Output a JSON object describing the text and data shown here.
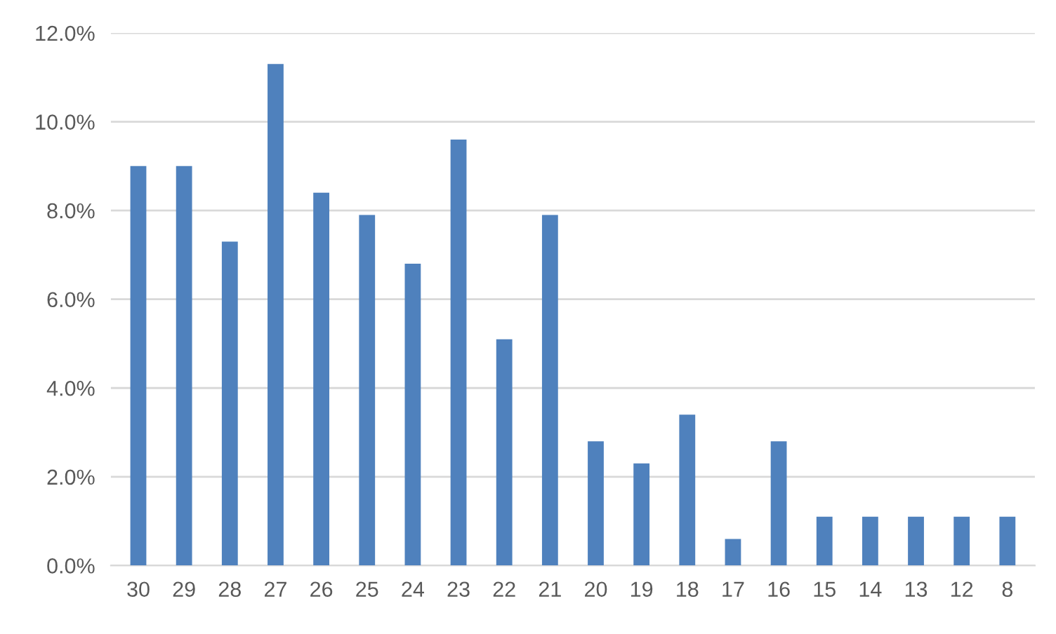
{
  "chart_data": {
    "type": "bar",
    "categories": [
      "30",
      "29",
      "28",
      "27",
      "26",
      "25",
      "24",
      "23",
      "22",
      "21",
      "20",
      "19",
      "18",
      "17",
      "16",
      "15",
      "14",
      "13",
      "12",
      "8"
    ],
    "values": [
      9.0,
      9.0,
      7.3,
      11.3,
      8.4,
      7.9,
      6.8,
      9.6,
      5.1,
      7.9,
      2.8,
      2.3,
      3.4,
      0.6,
      2.8,
      1.1,
      1.1,
      1.1,
      1.1,
      1.1
    ],
    "color": "#4f81bd",
    "ylim": [
      0,
      12
    ],
    "yticks": [
      {
        "value": 0,
        "label": "0.0%"
      },
      {
        "value": 2,
        "label": "2.0%"
      },
      {
        "value": 4,
        "label": "4.0%"
      },
      {
        "value": 6,
        "label": "6.0%"
      },
      {
        "value": 8,
        "label": "8.0%"
      },
      {
        "value": 10,
        "label": "10.0%"
      },
      {
        "value": 12,
        "label": "12.0%"
      }
    ],
    "grid": "y",
    "legend": false
  }
}
